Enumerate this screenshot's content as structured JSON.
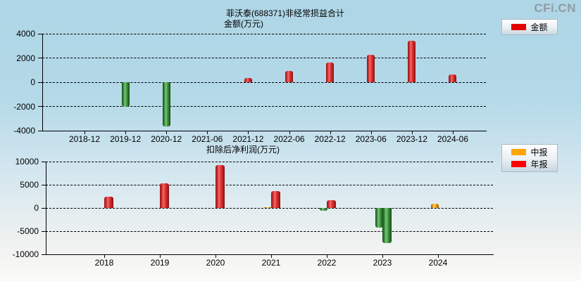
{
  "logo": "CFi.CN",
  "colors": {
    "background_top": "#aed6e6",
    "background_bottom": "#fbfaf7",
    "positive_bar": "#e23535",
    "negative_bar": "#47a347",
    "interim_bar": "#ffaa1e",
    "grid": "#000000",
    "logo_gray": "#919ba1"
  },
  "chart_data": [
    {
      "type": "bar",
      "title": "菲沃泰(688371)非经常损益合计",
      "ylabel": "金额(万元)",
      "categories": [
        "2018-12",
        "2019-12",
        "2020-12",
        "2021-06",
        "2021-12",
        "2022-06",
        "2022-12",
        "2023-06",
        "2023-12",
        "2024-06"
      ],
      "series": [
        {
          "name": "金额",
          "role": "red",
          "values": [
            null,
            -2050,
            -3650,
            null,
            350,
            900,
            1650,
            2250,
            3430,
            650
          ]
        }
      ],
      "ylim": [
        -4000,
        4000
      ],
      "yticks": [
        4000,
        2000,
        0,
        -2000,
        -4000
      ],
      "grid": "dashed horizontal",
      "negative_color_rule": "negative values drawn green",
      "legend_position": "outside right-top",
      "legend": [
        {
          "label": "金额",
          "color": "#e60000"
        }
      ]
    },
    {
      "type": "bar",
      "title": "扣除后净利润(万元)",
      "categories": [
        "2018",
        "2019",
        "2020",
        "2021",
        "2022",
        "2023",
        "2024"
      ],
      "series": [
        {
          "name": "中报",
          "role": "orange",
          "values": [
            null,
            null,
            null,
            150,
            -550,
            -4300,
            850
          ]
        },
        {
          "name": "年报",
          "role": "red",
          "values": [
            2400,
            5300,
            9250,
            3600,
            1600,
            -7600,
            null
          ]
        }
      ],
      "ylim": [
        -10000,
        10000
      ],
      "yticks": [
        10000,
        5000,
        0,
        -5000,
        -10000
      ],
      "grid": "dashed horizontal",
      "negative_color_rule": "negative values drawn green",
      "legend_position": "outside right-top",
      "legend": [
        {
          "label": "中报",
          "color": "#ffa500"
        },
        {
          "label": "年报",
          "color": "#ff0000"
        }
      ]
    }
  ]
}
